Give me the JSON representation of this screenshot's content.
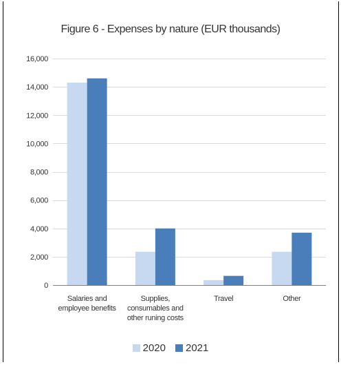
{
  "colors": {
    "series_2020": "#c6d9f1",
    "series_2021": "#4a7ebb",
    "grid": "#d9d9d9",
    "axis": "#808080",
    "text": "#333333"
  },
  "chart_data": {
    "type": "bar",
    "title": "Figure 6 - Expenses by nature (EUR thousands)",
    "xlabel": "",
    "ylabel": "",
    "ylim": [
      0,
      16000
    ],
    "yticks": [
      0,
      2000,
      4000,
      6000,
      8000,
      10000,
      12000,
      14000,
      16000
    ],
    "ytick_labels": [
      "0",
      "2,000",
      "4,000",
      "6,000",
      "8,000",
      "10,000",
      "12,000",
      "14,000",
      "16,000"
    ],
    "grid": true,
    "legend_position": "bottom",
    "categories": [
      [
        "Salaries and",
        "employee benefits"
      ],
      [
        "Supplies,",
        "consumables and",
        "other runing costs"
      ],
      [
        "Travel"
      ],
      [
        "Other"
      ]
    ],
    "series": [
      {
        "name": "2020",
        "values": [
          14300,
          2350,
          350,
          2350
        ]
      },
      {
        "name": "2021",
        "values": [
          14600,
          4000,
          650,
          3700
        ]
      }
    ]
  }
}
